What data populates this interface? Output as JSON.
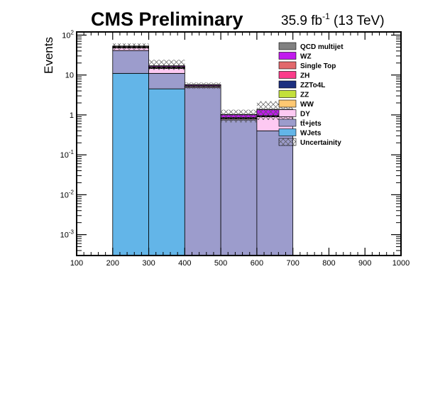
{
  "header": {
    "title": "CMS Preliminary",
    "lumi_value": "35.9 fb",
    "lumi_exponent": "-1",
    "lumi_energy": " (13 TeV)"
  },
  "chart_data": {
    "type": "bar",
    "subtype": "stacked-histogram",
    "ylabel": "Events",
    "xlabel": "",
    "xlim": [
      100,
      1000
    ],
    "ylim": [
      0.0003,
      120
    ],
    "yscale": "log",
    "x_ticks": [
      "100",
      "200",
      "300",
      "400",
      "500",
      "600",
      "700",
      "800",
      "900",
      "1000"
    ],
    "y_ticks": [
      {
        "value": 0.001,
        "base": "10",
        "exp": "-3"
      },
      {
        "value": 0.01,
        "base": "10",
        "exp": "-2"
      },
      {
        "value": 0.1,
        "base": "10",
        "exp": "-1"
      },
      {
        "value": 1,
        "base": "1",
        "exp": ""
      },
      {
        "value": 10,
        "base": "10",
        "exp": ""
      },
      {
        "value": 100,
        "base": "10",
        "exp": "2"
      }
    ],
    "bin_edges": [
      200,
      300,
      400,
      500,
      600,
      700
    ],
    "series": [
      {
        "name": "WJets",
        "color": "#63b5e8",
        "values": [
          11,
          4.5,
          0,
          0,
          0
        ]
      },
      {
        "name": "tt̄+jets",
        "color": "#9c9ccc",
        "values": [
          30,
          6.5,
          4.8,
          0.75,
          0.4
        ]
      },
      {
        "name": "DY",
        "color": "#fdc9f2",
        "values": [
          7,
          3.5,
          0.3,
          0.05,
          0.5
        ]
      },
      {
        "name": "WW",
        "color": "#ffc872",
        "values": [
          0.3,
          0.1,
          0.02,
          0.01,
          0.01
        ]
      },
      {
        "name": "ZZ",
        "color": "#c3e03b",
        "values": [
          0.3,
          0.1,
          0.02,
          0.01,
          0.01
        ]
      },
      {
        "name": "ZZTo4L",
        "color": "#1c2f80",
        "values": [
          0.5,
          0.3,
          0.05,
          0.01,
          0.01
        ]
      },
      {
        "name": "ZH",
        "color": "#fb3c8a",
        "values": [
          0.5,
          0.3,
          0.05,
          0.01,
          0.01
        ]
      },
      {
        "name": "Single Top",
        "color": "#e2686c",
        "values": [
          1.8,
          0.6,
          0.15,
          0.02,
          0.02
        ]
      },
      {
        "name": "WZ",
        "color": "#c11bee",
        "values": [
          1.1,
          0.9,
          0.3,
          0.15,
          0.4
        ]
      },
      {
        "name": "QCD multijet",
        "color": "#808080",
        "values": [
          0.8,
          0.3,
          0.05,
          0.02,
          0.02
        ]
      }
    ],
    "uncertainty": {
      "name": "Uncertainity",
      "lower": [
        43,
        13.5,
        4.5,
        0.65,
        0.75
      ],
      "upper": [
        62,
        24,
        6.5,
        1.35,
        2.2
      ]
    },
    "legend": {
      "position": "top-right",
      "order": [
        "QCD multijet",
        "WZ",
        "Single Top",
        "ZH",
        "ZZTo4L",
        "ZZ",
        "WW",
        "DY",
        "tt̄+jets",
        "WJets",
        "Uncertainity"
      ]
    }
  }
}
